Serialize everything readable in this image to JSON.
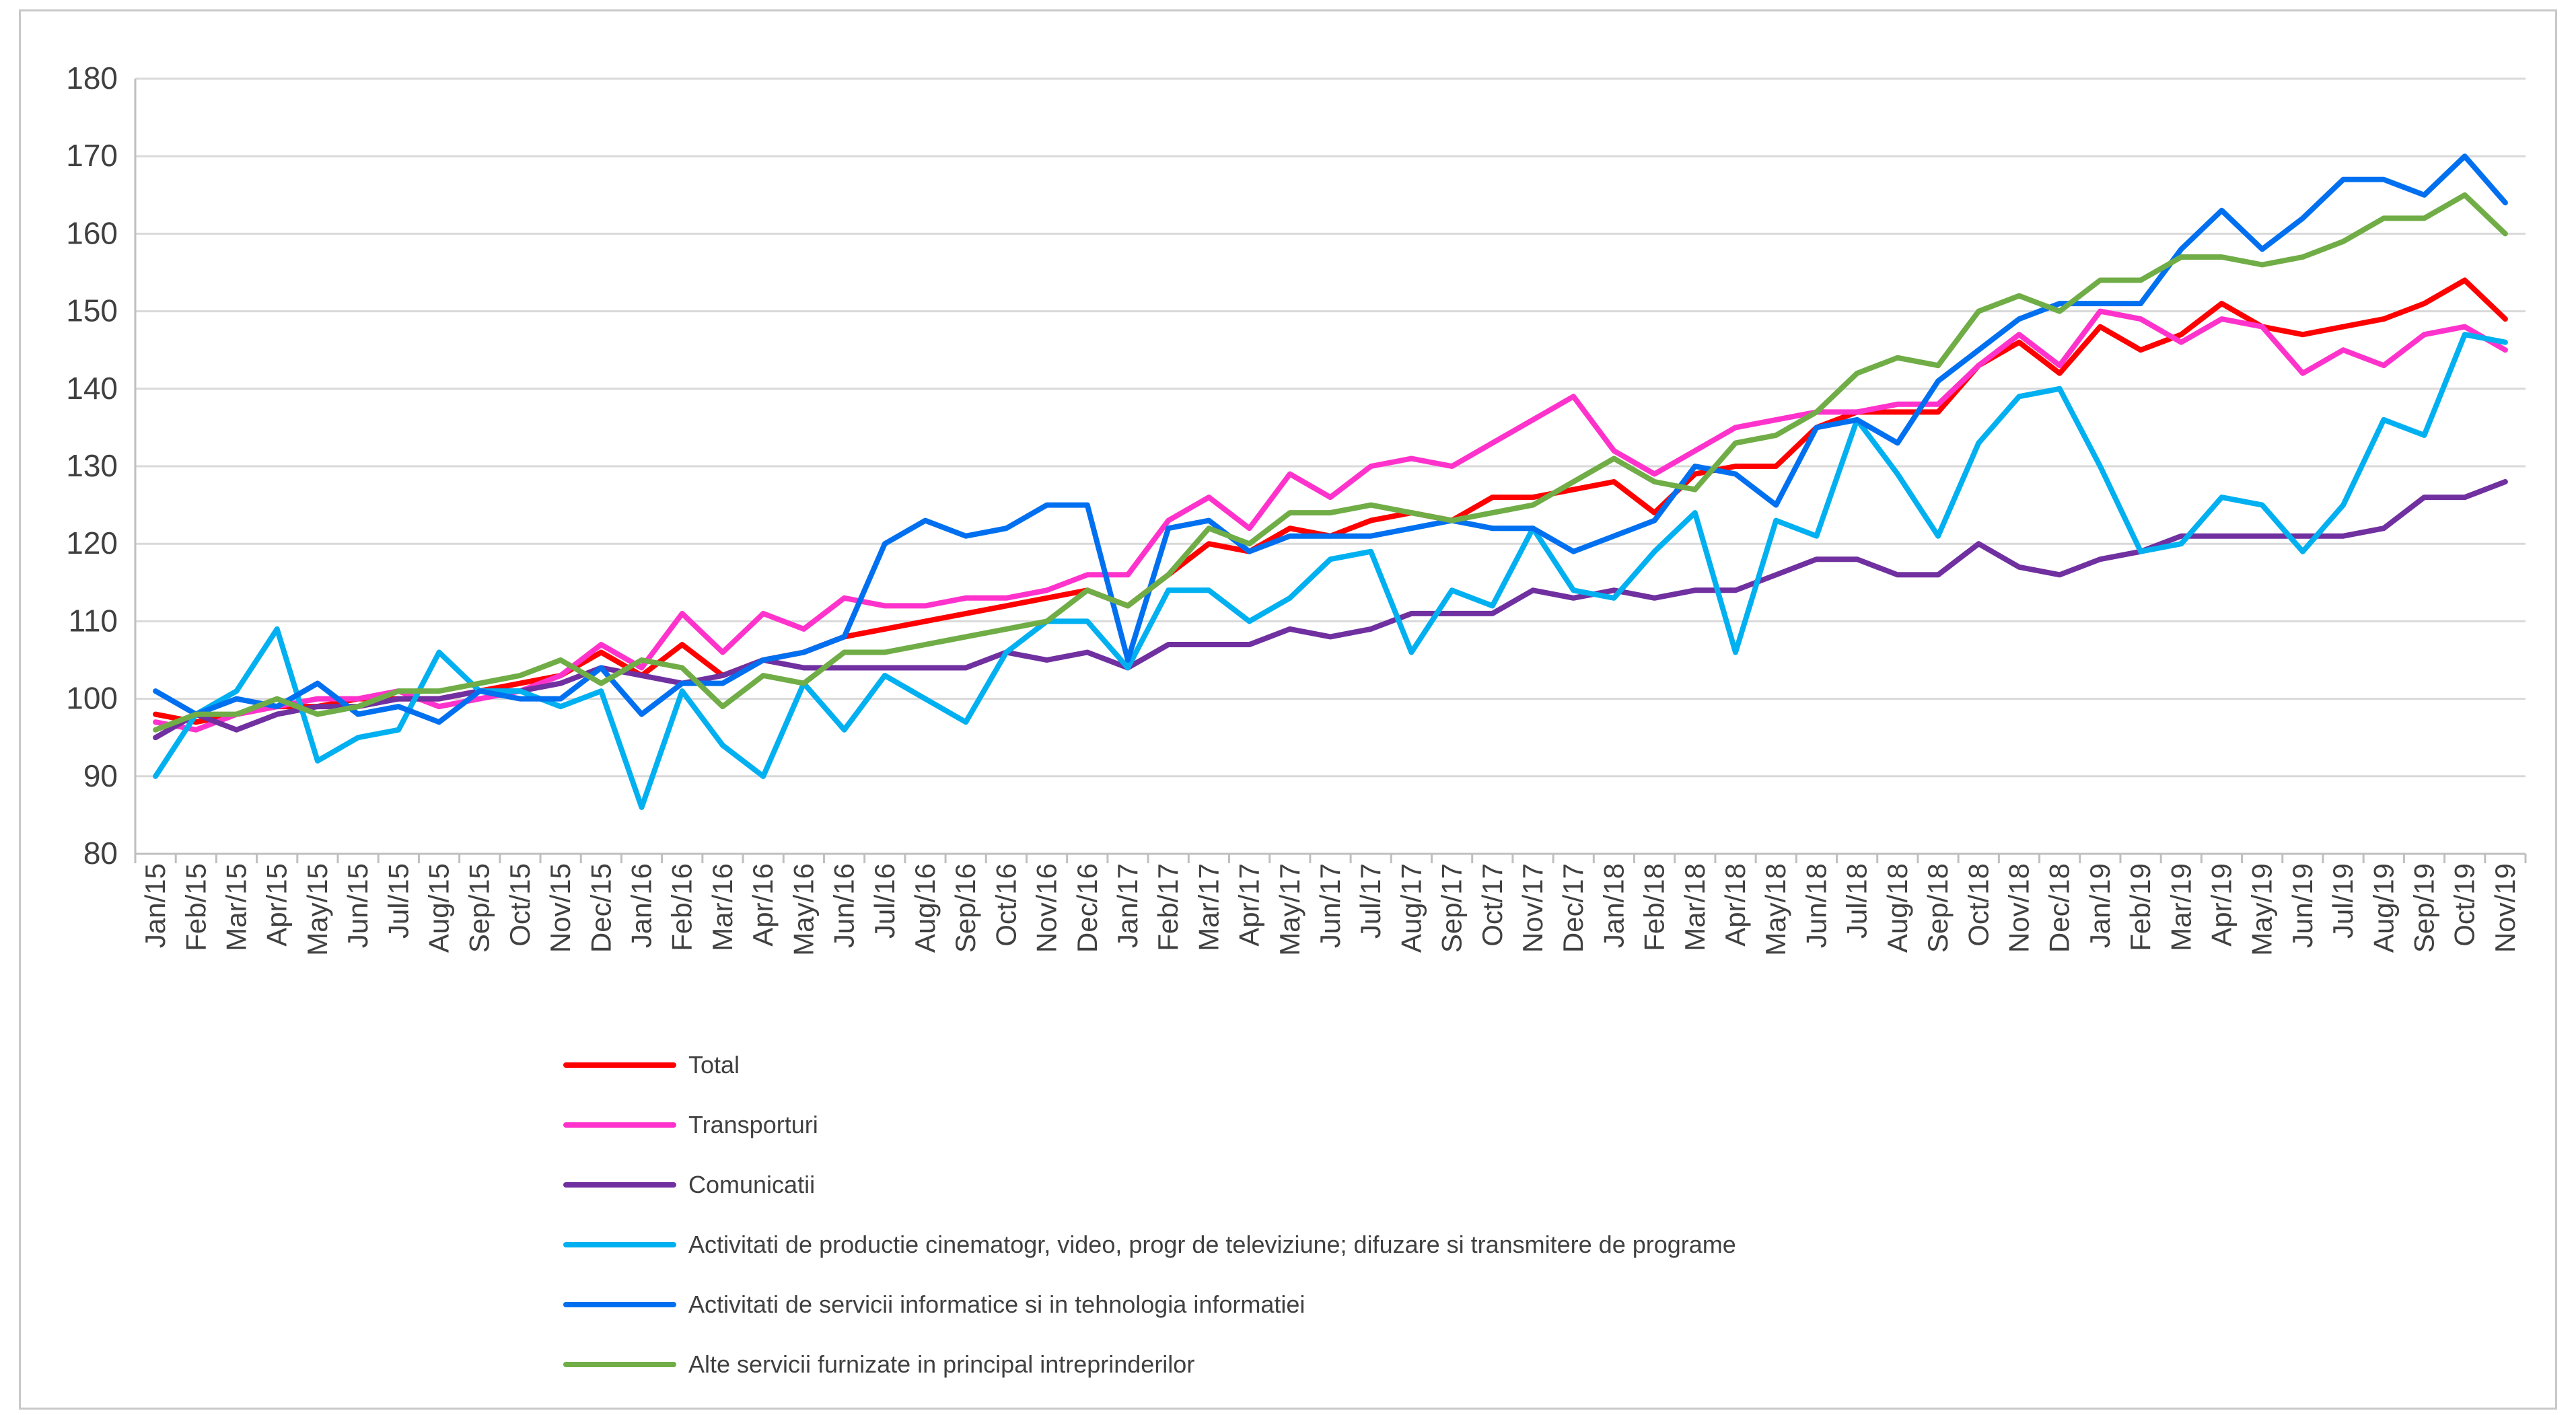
{
  "chart_data": {
    "type": "line",
    "title": "",
    "xlabel": "",
    "ylabel": "",
    "ylim": [
      80,
      180
    ],
    "yticks": [
      80,
      90,
      100,
      110,
      120,
      130,
      140,
      150,
      160,
      170,
      180
    ],
    "grid": "horizontal",
    "legend_position": "bottom",
    "categories": [
      "Jan/15",
      "Feb/15",
      "Mar/15",
      "Apr/15",
      "May/15",
      "Jun/15",
      "Jul/15",
      "Aug/15",
      "Sep/15",
      "Oct/15",
      "Nov/15",
      "Dec/15",
      "Jan/16",
      "Feb/16",
      "Mar/16",
      "Apr/16",
      "May/16",
      "Jun/16",
      "Jul/16",
      "Aug/16",
      "Sep/16",
      "Oct/16",
      "Nov/16",
      "Dec/16",
      "Jan/17",
      "Feb/17",
      "Mar/17",
      "Apr/17",
      "May/17",
      "Jun/17",
      "Jul/17",
      "Aug/17",
      "Sep/17",
      "Oct/17",
      "Nov/17",
      "Dec/17",
      "Jan/18",
      "Feb/18",
      "Mar/18",
      "Apr/18",
      "May/18",
      "Jun/18",
      "Jul/18",
      "Aug/18",
      "Sep/18",
      "Oct/18",
      "Nov/18",
      "Dec/18",
      "Jan/19",
      "Feb/19",
      "Mar/19",
      "Apr/19",
      "May/19",
      "Jun/19",
      "Jul/19",
      "Aug/19",
      "Sep/19",
      "Oct/19",
      "Nov/19"
    ],
    "series": [
      {
        "name": "Total",
        "color": "#ff0000",
        "values": [
          98,
          97,
          98,
          99,
          99,
          100,
          100,
          100,
          101,
          102,
          103,
          106,
          103,
          107,
          103,
          105,
          106,
          108,
          109,
          110,
          111,
          112,
          113,
          114,
          112,
          116,
          120,
          119,
          122,
          121,
          123,
          124,
          123,
          126,
          126,
          127,
          128,
          124,
          129,
          130,
          130,
          135,
          137,
          137,
          137,
          143,
          146,
          142,
          148,
          145,
          147,
          151,
          148,
          147,
          148,
          149,
          151,
          154,
          149
        ]
      },
      {
        "name": "Transporturi",
        "color": "#ff33cc",
        "values": [
          97,
          96,
          98,
          99,
          100,
          100,
          101,
          99,
          100,
          101,
          103,
          107,
          104,
          111,
          106,
          111,
          109,
          113,
          112,
          112,
          113,
          113,
          114,
          116,
          116,
          123,
          126,
          122,
          129,
          126,
          130,
          131,
          130,
          133,
          136,
          139,
          132,
          129,
          132,
          135,
          136,
          137,
          137,
          138,
          138,
          143,
          147,
          143,
          150,
          149,
          146,
          149,
          148,
          142,
          145,
          143,
          147,
          148,
          145
        ]
      },
      {
        "name": "Comunicatii",
        "color": "#7030a0",
        "values": [
          95,
          98,
          96,
          98,
          99,
          99,
          100,
          100,
          101,
          101,
          102,
          104,
          103,
          102,
          103,
          105,
          104,
          104,
          104,
          104,
          104,
          106,
          105,
          106,
          104,
          107,
          107,
          107,
          109,
          108,
          109,
          111,
          111,
          111,
          114,
          113,
          114,
          113,
          114,
          114,
          116,
          118,
          118,
          116,
          116,
          120,
          117,
          116,
          118,
          119,
          121,
          121,
          121,
          121,
          121,
          122,
          126,
          126,
          128
        ]
      },
      {
        "name": "Activitati de productie cinematogr, video, progr de televiziune; difuzare si transmitere de programe",
        "color": "#00b0f0",
        "values": [
          90,
          98,
          101,
          109,
          92,
          95,
          96,
          106,
          101,
          101,
          99,
          101,
          86,
          101,
          94,
          90,
          102,
          96,
          103,
          100,
          97,
          106,
          110,
          110,
          104,
          114,
          114,
          110,
          113,
          118,
          119,
          106,
          114,
          112,
          122,
          114,
          113,
          119,
          124,
          106,
          123,
          121,
          136,
          129,
          121,
          133,
          139,
          140,
          130,
          119,
          120,
          126,
          125,
          119,
          125,
          136,
          134,
          147,
          146
        ]
      },
      {
        "name": "Activitati de servicii informatice si in tehnologia informatiei",
        "color": "#0070f0",
        "values": [
          101,
          98,
          100,
          99,
          102,
          98,
          99,
          97,
          101,
          100,
          100,
          104,
          98,
          102,
          102,
          105,
          106,
          108,
          120,
          123,
          121,
          122,
          125,
          125,
          105,
          122,
          123,
          119,
          121,
          121,
          121,
          122,
          123,
          122,
          122,
          119,
          121,
          123,
          130,
          129,
          125,
          135,
          136,
          133,
          141,
          145,
          149,
          151,
          151,
          151,
          158,
          163,
          158,
          162,
          167,
          167,
          165,
          170,
          164
        ]
      },
      {
        "name": "Alte servicii furnizate in principal intreprinderilor",
        "color": "#70ad47",
        "values": [
          96,
          98,
          98,
          100,
          98,
          99,
          101,
          101,
          102,
          103,
          105,
          102,
          105,
          104,
          99,
          103,
          102,
          106,
          106,
          107,
          108,
          109,
          110,
          114,
          112,
          116,
          122,
          120,
          124,
          124,
          125,
          124,
          123,
          124,
          125,
          128,
          131,
          128,
          127,
          133,
          134,
          137,
          142,
          144,
          143,
          150,
          152,
          150,
          154,
          154,
          157,
          157,
          156,
          157,
          159,
          162,
          162,
          165,
          160
        ]
      }
    ]
  }
}
